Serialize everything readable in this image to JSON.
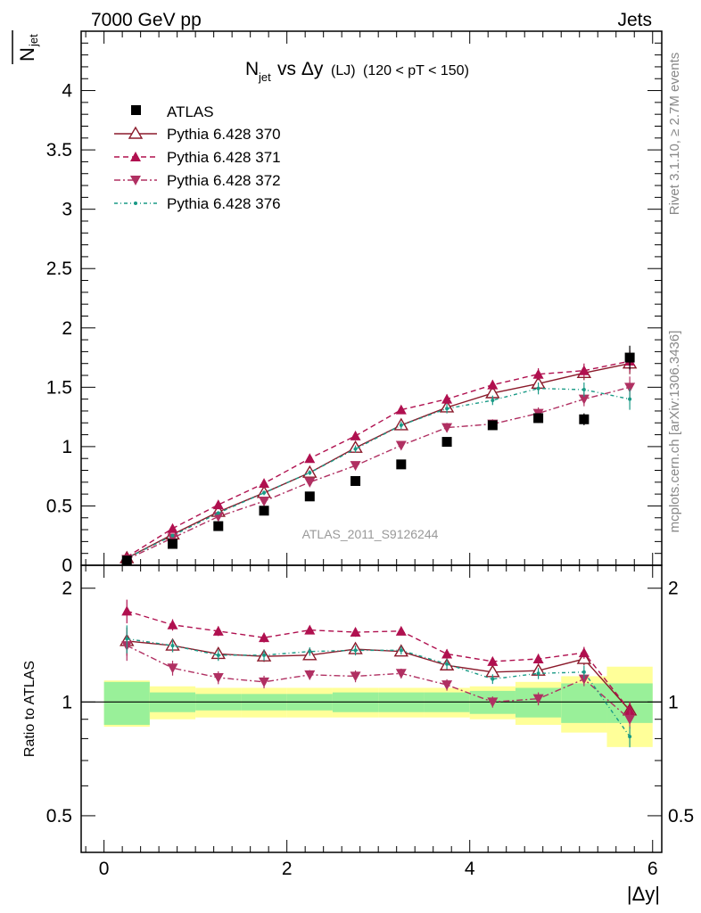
{
  "header": {
    "left": "7000 GeV pp",
    "right": "Jets"
  },
  "side_labels": {
    "rivet": "Rivet 3.1.10, ≥ 2.7M events",
    "mcplots": "mcplots.cern.ch [arXiv:1306.3436]"
  },
  "chart_data": {
    "type": "scatter",
    "title_main": "N",
    "title_sub": "jet",
    "title_rest": " vs Δy",
    "title_small": " (LJ)",
    "title_cut": " (120 < pT < 150)",
    "watermark": "ATLAS_2011_S9126244",
    "ylabel_main": "N",
    "ylabel_sub": "jet",
    "ylabel_ratio": "Ratio to ATLAS",
    "xlabel": "|Δy|",
    "xlim": [
      -0.25,
      6.1
    ],
    "ylim_main": [
      0,
      4.5
    ],
    "ylim_ratio": [
      0.4,
      2.3
    ],
    "ratio_log": true,
    "x_ticks": [
      0,
      2,
      4,
      6
    ],
    "y_ticks_main": [
      0,
      0.5,
      1,
      1.5,
      2,
      2.5,
      3,
      3.5,
      4
    ],
    "y_ticks_ratio": [
      0.5,
      1,
      2
    ],
    "x": [
      0.25,
      0.75,
      1.25,
      1.75,
      2.25,
      2.75,
      3.25,
      3.75,
      4.25,
      4.75,
      5.25,
      5.75
    ],
    "bin_edges": [
      0,
      0.5,
      1.0,
      1.5,
      2.0,
      2.5,
      3.0,
      3.5,
      4.0,
      4.5,
      5.0,
      5.5,
      6.0
    ],
    "data": {
      "name": "ATLAS",
      "values": [
        0.04,
        0.18,
        0.33,
        0.46,
        0.58,
        0.71,
        0.85,
        1.04,
        1.18,
        1.24,
        1.23,
        1.75
      ],
      "errors": [
        0.005,
        0.01,
        0.015,
        0.02,
        0.02,
        0.02,
        0.02,
        0.03,
        0.03,
        0.04,
        0.05,
        0.1
      ],
      "band_stat": [
        0.13,
        0.06,
        0.05,
        0.05,
        0.05,
        0.06,
        0.06,
        0.06,
        0.07,
        0.09,
        0.12,
        0.12
      ],
      "band_total": [
        0.14,
        0.1,
        0.09,
        0.09,
        0.09,
        0.09,
        0.09,
        0.09,
        0.1,
        0.13,
        0.17,
        0.24
      ]
    },
    "series": [
      {
        "name": "Pythia 6.428 370",
        "color": "#8b1a2b",
        "dash": "",
        "marker": "tri-open",
        "values": [
          0.06,
          0.26,
          0.45,
          0.61,
          0.78,
          0.99,
          1.18,
          1.33,
          1.45,
          1.53,
          1.62,
          1.7
        ],
        "errors": [
          0.005,
          0.01,
          0.015,
          0.02,
          0.02,
          0.03,
          0.03,
          0.04,
          0.04,
          0.05,
          0.06,
          0.09
        ],
        "ratio": [
          1.45,
          1.41,
          1.34,
          1.32,
          1.33,
          1.38,
          1.36,
          1.25,
          1.2,
          1.21,
          1.3,
          0.95
        ]
      },
      {
        "name": "Pythia 6.428 371",
        "color": "#b0104f",
        "dash": "6,4",
        "marker": "tri-up",
        "values": [
          0.07,
          0.31,
          0.51,
          0.69,
          0.9,
          1.09,
          1.31,
          1.4,
          1.52,
          1.61,
          1.64,
          1.72
        ],
        "errors": [
          0.005,
          0.01,
          0.015,
          0.02,
          0.02,
          0.03,
          0.03,
          0.04,
          0.04,
          0.05,
          0.06,
          0.09
        ],
        "ratio": [
          1.74,
          1.6,
          1.54,
          1.48,
          1.55,
          1.53,
          1.54,
          1.34,
          1.28,
          1.3,
          1.35,
          0.95
        ]
      },
      {
        "name": "Pythia 6.428 372",
        "color": "#b03062",
        "dash": "7,3,2,3",
        "marker": "tri-down",
        "values": [
          0.05,
          0.23,
          0.41,
          0.54,
          0.7,
          0.84,
          1.01,
          1.16,
          1.19,
          1.28,
          1.4,
          1.5
        ],
        "errors": [
          0.005,
          0.01,
          0.015,
          0.02,
          0.02,
          0.03,
          0.03,
          0.04,
          0.04,
          0.05,
          0.06,
          0.09
        ],
        "ratio": [
          1.41,
          1.23,
          1.16,
          1.13,
          1.18,
          1.17,
          1.19,
          1.11,
          1.0,
          1.02,
          1.15,
          0.9
        ]
      },
      {
        "name": "Pythia 6.428 376",
        "color": "#1a9a86",
        "dash": "4,3,1,3",
        "marker": "dot",
        "values": [
          0.06,
          0.25,
          0.44,
          0.61,
          0.78,
          0.98,
          1.18,
          1.32,
          1.39,
          1.49,
          1.48,
          1.4
        ],
        "errors": [
          0.005,
          0.01,
          0.015,
          0.02,
          0.02,
          0.03,
          0.03,
          0.04,
          0.04,
          0.05,
          0.06,
          0.09
        ],
        "ratio": [
          1.47,
          1.41,
          1.33,
          1.33,
          1.36,
          1.37,
          1.37,
          1.26,
          1.15,
          1.19,
          1.2,
          0.81
        ]
      }
    ]
  }
}
